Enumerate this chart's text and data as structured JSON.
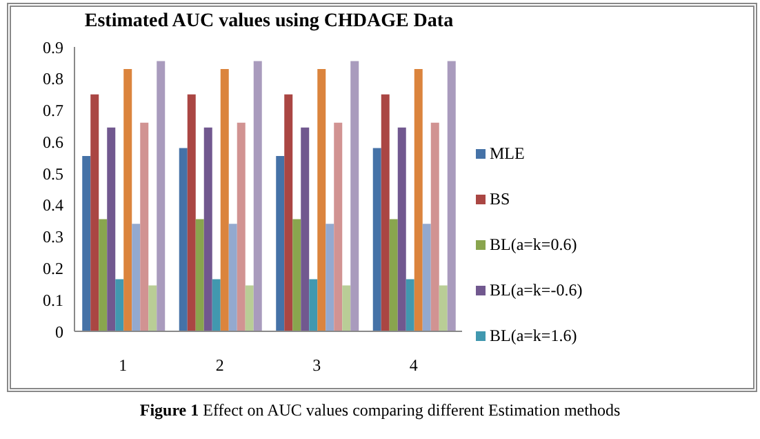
{
  "chart_data": {
    "type": "bar",
    "title": "Estimated AUC values using CHDAGE Data",
    "categories": [
      "1",
      "2",
      "3",
      "4"
    ],
    "series": [
      {
        "name": "MLE",
        "color": "#4572a7",
        "values": [
          0.555,
          0.58,
          0.555,
          0.58
        ]
      },
      {
        "name": "BS",
        "color": "#aa4643",
        "values": [
          0.75,
          0.75,
          0.75,
          0.75
        ]
      },
      {
        "name": "BL(a=k=0.6)",
        "color": "#89a54e",
        "values": [
          0.355,
          0.355,
          0.355,
          0.355
        ]
      },
      {
        "name": "BL(a=k=-0.6)",
        "color": "#71588f",
        "values": [
          0.645,
          0.645,
          0.645,
          0.645
        ]
      },
      {
        "name": "BL(a=k=1.6)",
        "color": "#4198af",
        "values": [
          0.165,
          0.165,
          0.165,
          0.165
        ]
      },
      {
        "color": "#db843d",
        "values": [
          0.83,
          0.83,
          0.83,
          0.83
        ]
      },
      {
        "color": "#93a9cf",
        "values": [
          0.34,
          0.34,
          0.34,
          0.34
        ]
      },
      {
        "color": "#d19392",
        "values": [
          0.66,
          0.66,
          0.66,
          0.66
        ]
      },
      {
        "color": "#b9cd96",
        "values": [
          0.145,
          0.145,
          0.145,
          0.145
        ]
      },
      {
        "color": "#a99bbd",
        "values": [
          0.855,
          0.855,
          0.855,
          0.855
        ]
      }
    ],
    "ylim": [
      0,
      0.9
    ],
    "yticks": [
      0,
      0.1,
      0.2,
      0.3,
      0.4,
      0.5,
      0.6,
      0.7,
      0.8,
      0.9
    ],
    "grid": false,
    "legend": "right",
    "annotations": [
      "Figure 1 Effect on AUC values comparing different Estimation methods"
    ]
  }
}
